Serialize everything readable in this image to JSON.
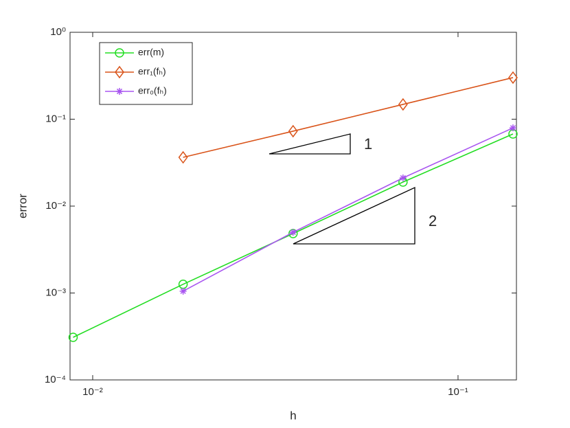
{
  "chart_data": {
    "type": "line",
    "log_x": true,
    "log_y": true,
    "xlabel": "h",
    "ylabel": "error",
    "x": [
      0.00884,
      0.01768,
      0.03536,
      0.0707,
      0.1414
    ],
    "series": [
      {
        "name": "err(m)",
        "color": "#22dd22",
        "marker": "circle",
        "values": [
          0.000309,
          0.00126,
          0.00483,
          0.0189,
          0.0676
        ]
      },
      {
        "name": "err₁(fₕ)",
        "color": "#d95319",
        "marker": "diamond",
        "values": [
          null,
          0.0364,
          0.0728,
          0.148,
          0.301
        ]
      },
      {
        "name": "err₀(fₕ)",
        "color": "#a855f0",
        "marker": "asterisk",
        "values": [
          null,
          0.00105,
          0.005,
          0.0211,
          0.0794
        ]
      }
    ],
    "xlim": [
      0.00867,
      0.1445
    ],
    "ylim": [
      0.0001,
      1
    ],
    "xticks": [
      {
        "value": 0.01,
        "label": "10⁻²"
      },
      {
        "value": 0.1,
        "label": "10⁻¹"
      }
    ],
    "yticks": [
      {
        "value": 0.0001,
        "label": "10⁻⁴"
      },
      {
        "value": 0.001,
        "label": "10⁻³"
      },
      {
        "value": 0.01,
        "label": "10⁻²"
      },
      {
        "value": 0.1,
        "label": "10⁻¹"
      },
      {
        "value": 1,
        "label": "10⁰"
      }
    ],
    "legend": "upper left",
    "annotations": [
      "1",
      "2"
    ]
  }
}
